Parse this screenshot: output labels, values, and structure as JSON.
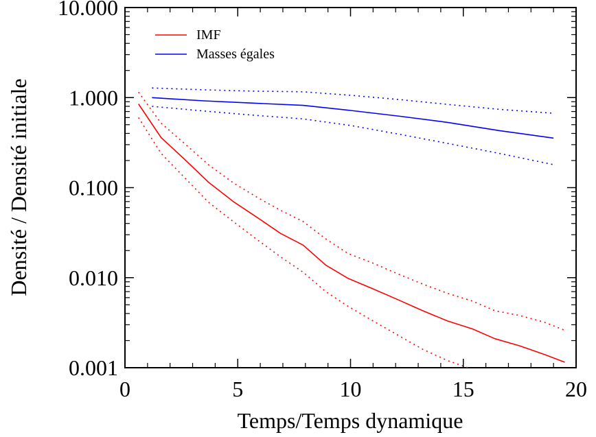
{
  "chart_data": {
    "type": "line",
    "xlabel": "Temps/Temps dynamique",
    "ylabel": "Densité / Densité initiale",
    "xlim": [
      0,
      20
    ],
    "ylim": [
      0.001,
      10
    ],
    "yscale": "log",
    "x_ticks": [
      0,
      5,
      10,
      15,
      20
    ],
    "x_tick_labels": [
      "0",
      "5",
      "10",
      "15",
      "20"
    ],
    "y_ticks": [
      0.001,
      0.01,
      0.1,
      1,
      10
    ],
    "y_tick_labels": [
      "0.001",
      "0.010",
      "0.100",
      "1.000",
      "10.000"
    ],
    "grid": false,
    "legend_position": "top-left",
    "series": [
      {
        "name": "IMF",
        "color": "#ff0000",
        "style": "solid",
        "x": [
          0.6,
          1.6,
          2.7,
          3.7,
          4.8,
          5.9,
          6.9,
          7.9,
          8.9,
          9.9,
          11.0,
          12.1,
          13.2,
          14.3,
          15.4,
          16.4,
          17.5,
          18.6,
          19.5
        ],
        "y": [
          0.85,
          0.36,
          0.2,
          0.115,
          0.07,
          0.046,
          0.031,
          0.023,
          0.0138,
          0.0098,
          0.0075,
          0.0057,
          0.0043,
          0.0033,
          0.0027,
          0.0021,
          0.00175,
          0.0014,
          0.00115
        ]
      },
      {
        "name": "",
        "color": "#ff0000",
        "style": "dotted",
        "x": [
          0.6,
          1.6,
          2.7,
          3.7,
          4.8,
          5.9,
          6.9,
          7.9,
          8.9,
          9.9,
          11.0,
          12.1,
          13.2,
          14.3,
          15.4,
          16.4,
          17.5,
          18.6,
          19.5
        ],
        "y": [
          1.15,
          0.52,
          0.3,
          0.18,
          0.113,
          0.077,
          0.056,
          0.042,
          0.027,
          0.0185,
          0.0145,
          0.011,
          0.0085,
          0.0067,
          0.0055,
          0.0043,
          0.0038,
          0.0032,
          0.0026
        ]
      },
      {
        "name": "",
        "color": "#ff0000",
        "style": "dotted",
        "x": [
          0.6,
          1.6,
          2.7,
          3.7,
          4.8,
          5.9,
          6.9,
          7.9,
          8.9,
          9.9,
          11.0,
          12.1,
          13.2,
          14.3,
          15.4,
          16.0
        ],
        "y": [
          0.6,
          0.24,
          0.125,
          0.069,
          0.042,
          0.026,
          0.017,
          0.0115,
          0.007,
          0.0048,
          0.0033,
          0.0023,
          0.0016,
          0.0012,
          0.00096,
          0.00082
        ]
      },
      {
        "name": "Masses égales",
        "color": "#0000ff",
        "style": "solid",
        "x": [
          1.2,
          3.5,
          5.6,
          7.9,
          10.0,
          12.2,
          14.3,
          16.6,
          19.0
        ],
        "y": [
          1.0,
          0.92,
          0.87,
          0.82,
          0.72,
          0.62,
          0.53,
          0.43,
          0.355
        ]
      },
      {
        "name": "",
        "color": "#0000ff",
        "style": "dotted",
        "x": [
          1.2,
          3.5,
          5.6,
          7.9,
          10.0,
          12.2,
          14.3,
          16.6,
          19.0
        ],
        "y": [
          1.28,
          1.22,
          1.18,
          1.16,
          1.06,
          0.95,
          0.84,
          0.74,
          0.67
        ]
      },
      {
        "name": "",
        "color": "#0000ff",
        "style": "dotted",
        "x": [
          1.2,
          3.5,
          5.6,
          7.9,
          10.0,
          12.2,
          14.3,
          16.6,
          19.0
        ],
        "y": [
          0.8,
          0.71,
          0.64,
          0.58,
          0.49,
          0.39,
          0.31,
          0.24,
          0.18
        ]
      }
    ]
  }
}
